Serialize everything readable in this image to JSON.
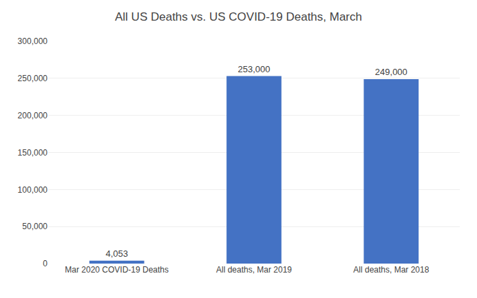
{
  "chart_data": {
    "type": "bar",
    "title": "All US Deaths vs. US COVID-19 Deaths, March",
    "categories": [
      "Mar 2020 COVID-19 Deaths",
      "All deaths, Mar 2019",
      "All deaths, Mar 2018"
    ],
    "values": [
      4053,
      253000,
      249000
    ],
    "value_labels": [
      "4,053",
      "253,000",
      "249,000"
    ],
    "data_labels": true,
    "color": "#4472C4",
    "ylim": [
      0,
      300000
    ],
    "yticks": [
      0,
      {
        "value": 50000,
        "label": "50,000"
      },
      {
        "value": 100000,
        "label": "100,000"
      },
      {
        "value": 150000,
        "label": "150,000"
      },
      {
        "value": 200000,
        "label": "200,000"
      },
      {
        "value": 250000,
        "label": "250,000"
      },
      {
        "value": 300000,
        "label": "300,000"
      }
    ],
    "grid": true
  }
}
